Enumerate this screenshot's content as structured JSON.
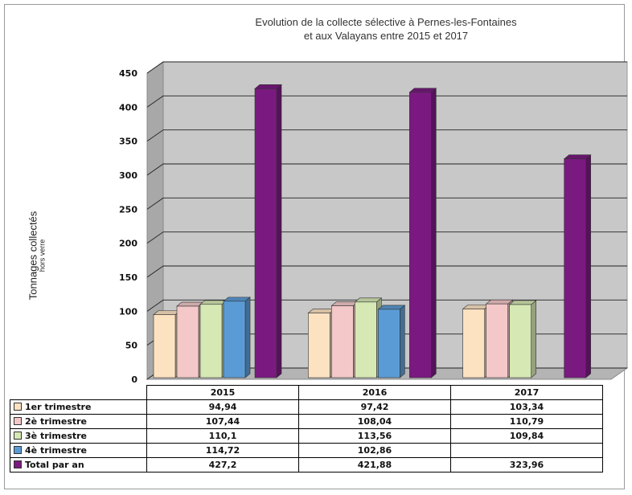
{
  "chart_data": {
    "type": "bar",
    "title": "Evolution de la collecte sélective à Pernes-les-Fontaines",
    "subtitle": "et aux Valayans entre 2015 et 2017",
    "ylabel": "Tonnages collectés",
    "ylabel_sub": "hors verre",
    "ylim": [
      0,
      450
    ],
    "yticks": [
      "0",
      "50",
      "100",
      "150",
      "200",
      "250",
      "300",
      "350",
      "400",
      "450"
    ],
    "categories": [
      "2015",
      "2016",
      "2017"
    ],
    "grid": true,
    "legend": "data-table-bottom",
    "series": [
      {
        "name": "1er trimestre",
        "color": "#fde2c2",
        "values": [
          94.94,
          97.42,
          103.34
        ],
        "labels": [
          "94,94",
          "97,42",
          "103,34"
        ]
      },
      {
        "name": "2è trimestre",
        "color": "#f4c8c8",
        "values": [
          107.44,
          108.04,
          110.79
        ],
        "labels": [
          "107,44",
          "108,04",
          "110,79"
        ]
      },
      {
        "name": "3è trimestre",
        "color": "#d6e8b4",
        "values": [
          110.1,
          113.56,
          109.84
        ],
        "labels": [
          "110,1",
          "113,56",
          "109,84"
        ]
      },
      {
        "name": "4è trimestre",
        "color": "#5b9bd5",
        "values": [
          114.72,
          102.86,
          null
        ],
        "labels": [
          "114,72",
          "102,86",
          ""
        ]
      },
      {
        "name": "Total par an",
        "color": "#7a1a80",
        "values": [
          427.2,
          421.88,
          323.96
        ],
        "labels": [
          "427,2",
          "421,88",
          "323,96"
        ]
      }
    ]
  }
}
